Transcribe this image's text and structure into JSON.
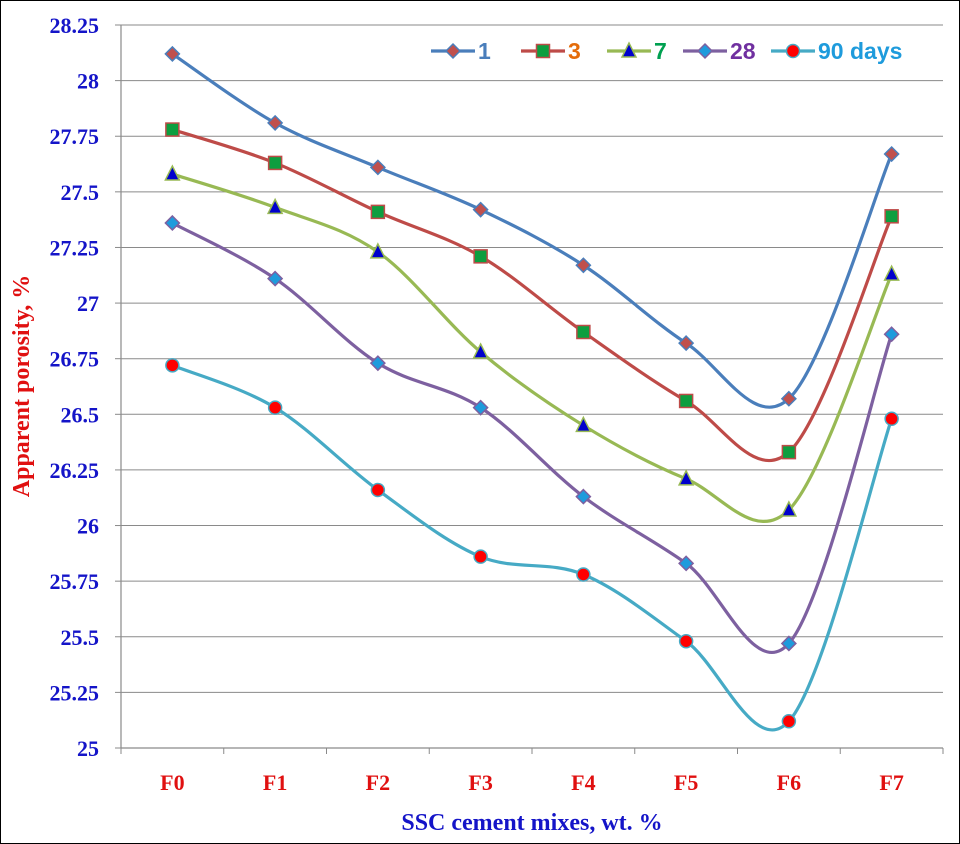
{
  "chart_data": {
    "type": "line",
    "title": "",
    "xlabel": "SSC cement mixes, wt. %",
    "ylabel": "Apparent  porosity, %",
    "categories": [
      "F0",
      "F1",
      "F2",
      "F3",
      "F4",
      "F5",
      "F6",
      "F7"
    ],
    "ylim": [
      25,
      28.25
    ],
    "yticks": [
      "25",
      "25.25",
      "25.5",
      "25.75",
      "26",
      "26.25",
      "26.5",
      "26.75",
      "27",
      "27.25",
      "27.5",
      "27.75",
      "28",
      "28.25"
    ],
    "grid": true,
    "legend_position": "top-right",
    "series": [
      {
        "name": "1",
        "line_color": "#4a7ebb",
        "marker": "diamond",
        "marker_color": "#c0504d",
        "label_color": "#4a7ebb",
        "values": [
          28.12,
          27.81,
          27.61,
          27.42,
          27.17,
          26.82,
          26.57,
          27.67
        ]
      },
      {
        "name": "3",
        "line_color": "#be4b48",
        "marker": "square",
        "marker_color": "#0d9e3f",
        "label_color": "#e46c0a",
        "values": [
          27.78,
          27.63,
          27.41,
          27.21,
          26.87,
          26.56,
          26.33,
          27.39
        ]
      },
      {
        "name": "7",
        "line_color": "#98b954",
        "marker": "triangle",
        "marker_color": "#0000cc",
        "label_color": "#00a050",
        "values": [
          27.58,
          27.43,
          27.23,
          26.78,
          26.45,
          26.21,
          26.07,
          27.13
        ]
      },
      {
        "name": "28",
        "line_color": "#7d60a0",
        "marker": "diamond",
        "marker_color": "#1e9bdc",
        "label_color": "#7030a0",
        "values": [
          27.36,
          27.11,
          26.73,
          26.53,
          26.13,
          25.83,
          25.47,
          26.86
        ]
      },
      {
        "name": "90 days",
        "line_color": "#46aac5",
        "marker": "circle",
        "marker_color": "#ff0000",
        "label_color": "#1e9bdc",
        "values": [
          26.72,
          26.53,
          26.16,
          25.86,
          25.78,
          25.48,
          25.12,
          26.48
        ]
      }
    ]
  }
}
